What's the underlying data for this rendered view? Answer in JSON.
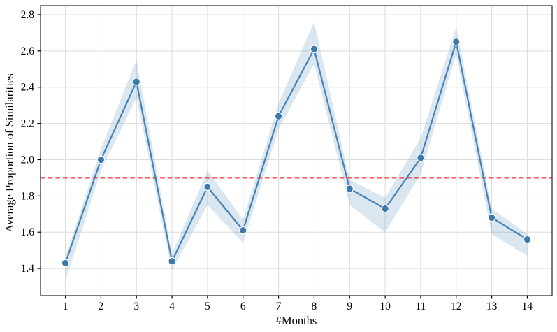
{
  "figure": {
    "background": "#ffffff"
  },
  "chart_data": {
    "type": "line",
    "title": "",
    "xlabel": "#Months",
    "ylabel": "Average Proportion of Similarities",
    "x": [
      1,
      2,
      3,
      4,
      5,
      6,
      7,
      8,
      9,
      10,
      11,
      12,
      13,
      14
    ],
    "series": [
      {
        "name": "average-proportion-of-similarities",
        "values": [
          1.43,
          2.0,
          2.43,
          1.44,
          1.85,
          1.61,
          2.24,
          2.61,
          1.84,
          1.73,
          2.01,
          2.65,
          1.68,
          1.56
        ]
      }
    ],
    "band": {
      "upper": [
        1.46,
        2.06,
        2.55,
        1.48,
        1.94,
        1.67,
        2.31,
        2.76,
        1.89,
        1.79,
        2.12,
        2.73,
        1.73,
        1.59
      ],
      "lower": [
        1.33,
        1.94,
        2.34,
        1.39,
        1.75,
        1.54,
        2.17,
        2.53,
        1.75,
        1.6,
        1.92,
        2.58,
        1.59,
        1.47
      ]
    },
    "reference_line": {
      "value": 1.9,
      "style": "dashed",
      "color": "#ff0000"
    },
    "xlim": [
      0.3,
      14.7
    ],
    "ylim": [
      1.25,
      2.85
    ],
    "xticks": [
      "1",
      "2",
      "3",
      "4",
      "5",
      "6",
      "7",
      "8",
      "9",
      "10",
      "11",
      "12",
      "13",
      "14"
    ],
    "yticks": [
      "1.4",
      "1.6",
      "1.8",
      "2.0",
      "2.2",
      "2.4",
      "2.6",
      "2.8"
    ],
    "grid": true,
    "legend": "none",
    "colors": {
      "line": "#4682b4",
      "marker_fill": "#3d78ad",
      "marker_edge": "#ffffff",
      "band_fill": "#4682b4",
      "band_opacity": 0.2,
      "grid": "#dcdcdc",
      "spine": "#333333",
      "tick": "#000000",
      "reference": "#ff0000"
    }
  }
}
